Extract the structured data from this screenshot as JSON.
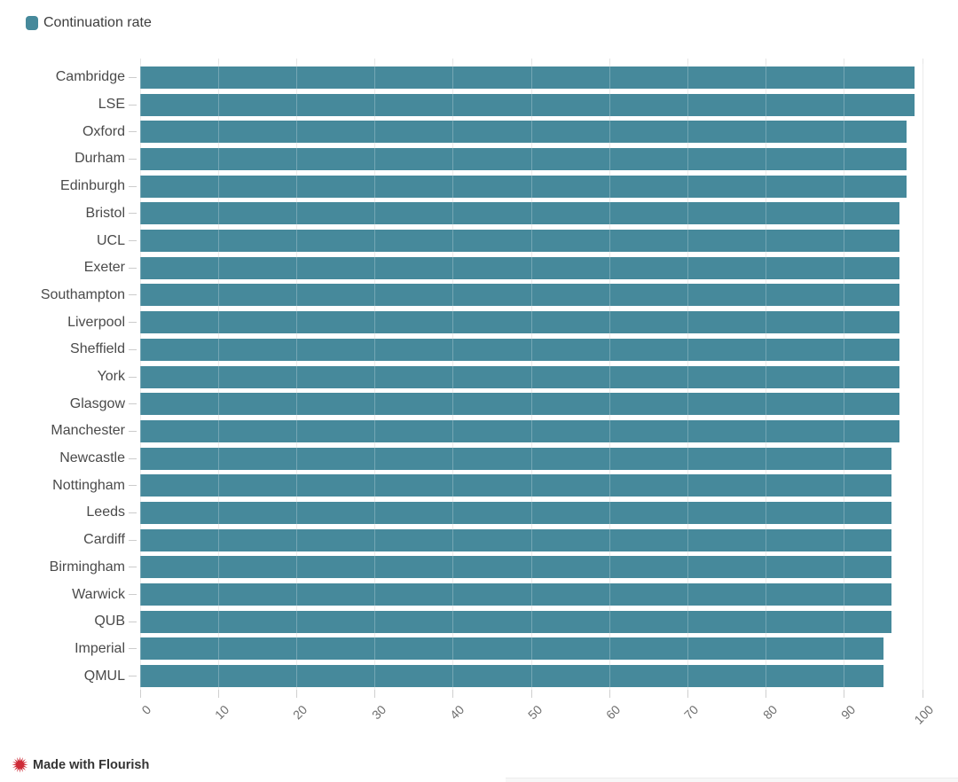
{
  "legend": {
    "items": [
      {
        "label": "Continuation rate",
        "color": "#46899B"
      }
    ]
  },
  "chart_data": {
    "type": "bar",
    "orientation": "horizontal",
    "title": "",
    "xlabel": "",
    "ylabel": "",
    "legend_entries": [
      "Continuation rate"
    ],
    "legend_position": "top-left",
    "grid": true,
    "bar_color": "#46899B",
    "xlim": [
      0,
      100
    ],
    "x_ticks": [
      0,
      10,
      20,
      30,
      40,
      50,
      60,
      70,
      80,
      90,
      100
    ],
    "categories": [
      "Cambridge",
      "LSE",
      "Oxford",
      "Durham",
      "Edinburgh",
      "Bristol",
      "UCL",
      "Exeter",
      "Southampton",
      "Liverpool",
      "Sheffield",
      "York",
      "Glasgow",
      "Manchester",
      "Newcastle",
      "Nottingham",
      "Leeds",
      "Cardiff",
      "Birmingham",
      "Warwick",
      "QUB",
      "Imperial",
      "QMUL"
    ],
    "series": [
      {
        "name": "Continuation rate",
        "values": [
          99,
          99,
          98,
          98,
          98,
          97,
          97,
          97,
          97,
          97,
          97,
          97,
          97,
          97,
          96,
          96,
          96,
          96,
          96,
          96,
          96,
          95,
          95
        ]
      }
    ]
  },
  "credit": {
    "label": "Made with Flourish",
    "icon": "flourish-starburst-icon",
    "icon_color": "#CE2B37"
  }
}
